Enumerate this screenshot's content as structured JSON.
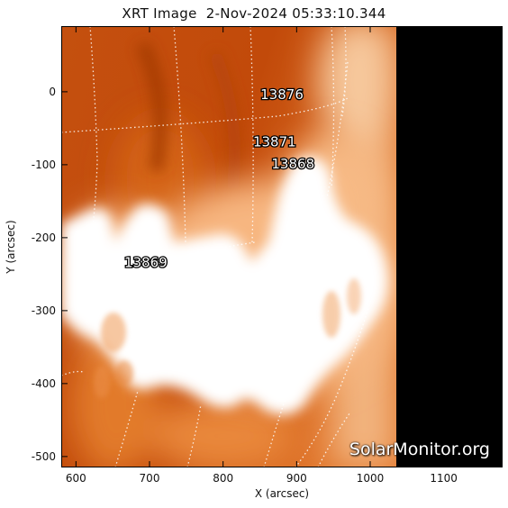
{
  "title": "XRT Image  2-Nov-2024 05:33:10.344",
  "axes": {
    "xlabel": "X (arcsec)",
    "ylabel": "Y (arcsec)",
    "xlim": [
      580,
      1180
    ],
    "ylim": [
      -515,
      90
    ],
    "xticks": [
      600,
      700,
      800,
      900,
      1000,
      1100
    ],
    "yticks": [
      0,
      -100,
      -200,
      -300,
      -400,
      -500
    ]
  },
  "active_regions": [
    {
      "label": "13876",
      "x": 880,
      "y": -10
    },
    {
      "label": "13871",
      "x": 870,
      "y": -75
    },
    {
      "label": "13868",
      "x": 895,
      "y": -105
    },
    {
      "label": "13869",
      "x": 695,
      "y": -240
    }
  ],
  "watermark": "SolarMonitor.org",
  "colors": {
    "dark": "#c24a0a",
    "mid": "#e8812d",
    "bright": "#ffffff",
    "offdisk": "#000000"
  }
}
